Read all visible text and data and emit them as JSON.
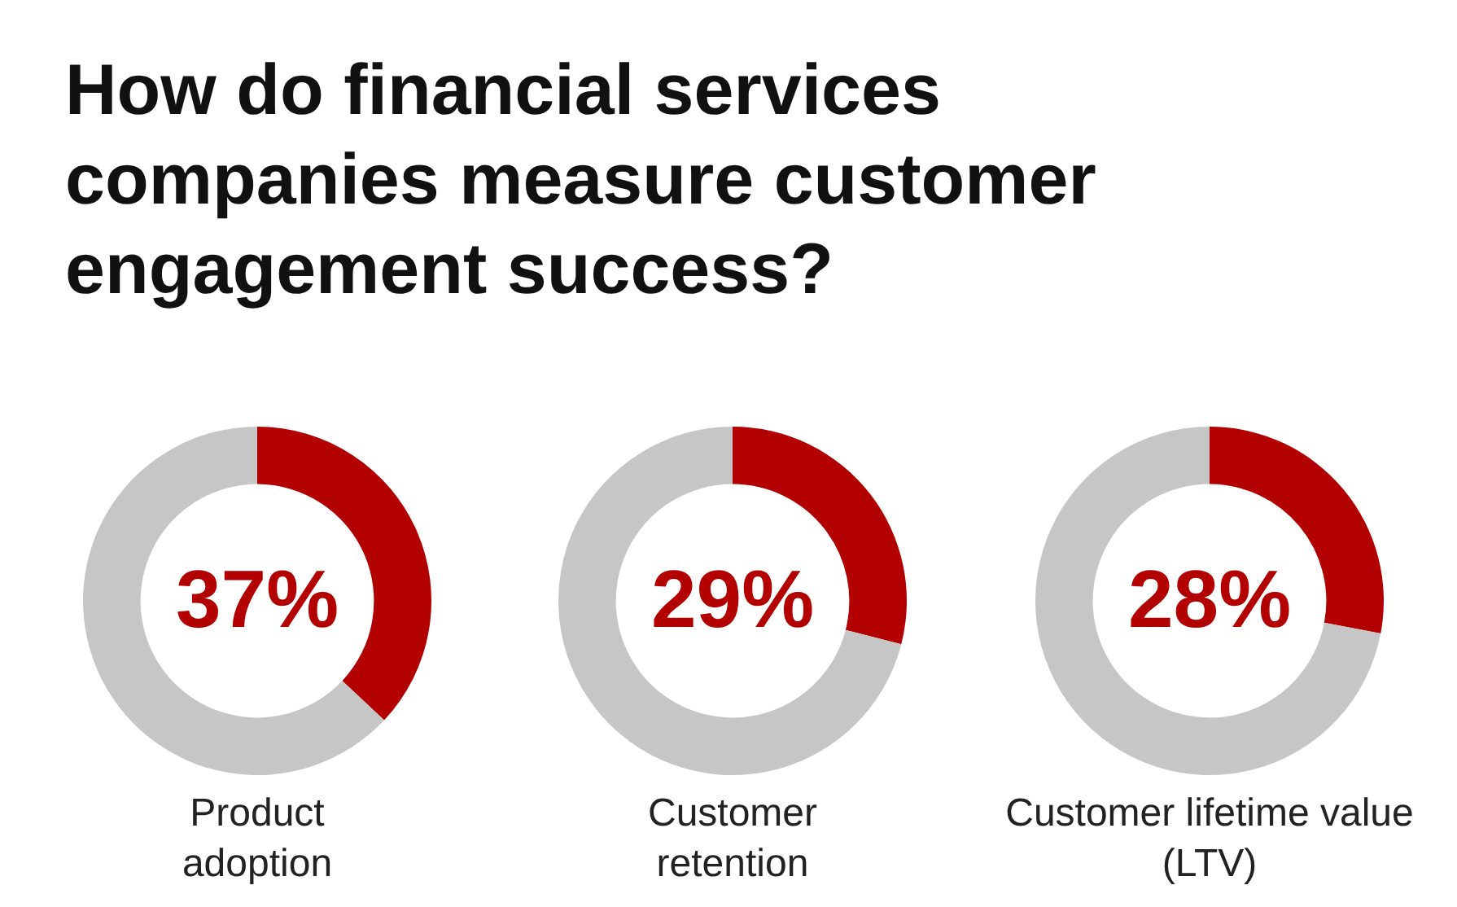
{
  "chart_data": [
    {
      "type": "donut",
      "title": "How do financial services companies measure customer engagement success?",
      "xlabel": "Product adoption",
      "categories": [
        null,
        null
      ],
      "values": [
        37,
        63
      ],
      "colors": [
        "#b30000",
        "#c6c6c6"
      ],
      "value_labels": [
        "37%",
        null
      ]
    },
    {
      "type": "donut",
      "xlabel": "Customer retention",
      "categories": [
        null,
        null
      ],
      "values": [
        29,
        71
      ],
      "colors": [
        "#b30000",
        "#c6c6c6"
      ],
      "value_labels": [
        "29%",
        null
      ]
    },
    {
      "type": "donut",
      "xlabel": "Customer lifetime value (LTV)",
      "categories": [
        null,
        null
      ],
      "values": [
        28,
        72
      ],
      "colors": [
        "#b30000",
        "#c6c6c6"
      ],
      "value_labels": [
        "28%",
        null
      ]
    }
  ]
}
